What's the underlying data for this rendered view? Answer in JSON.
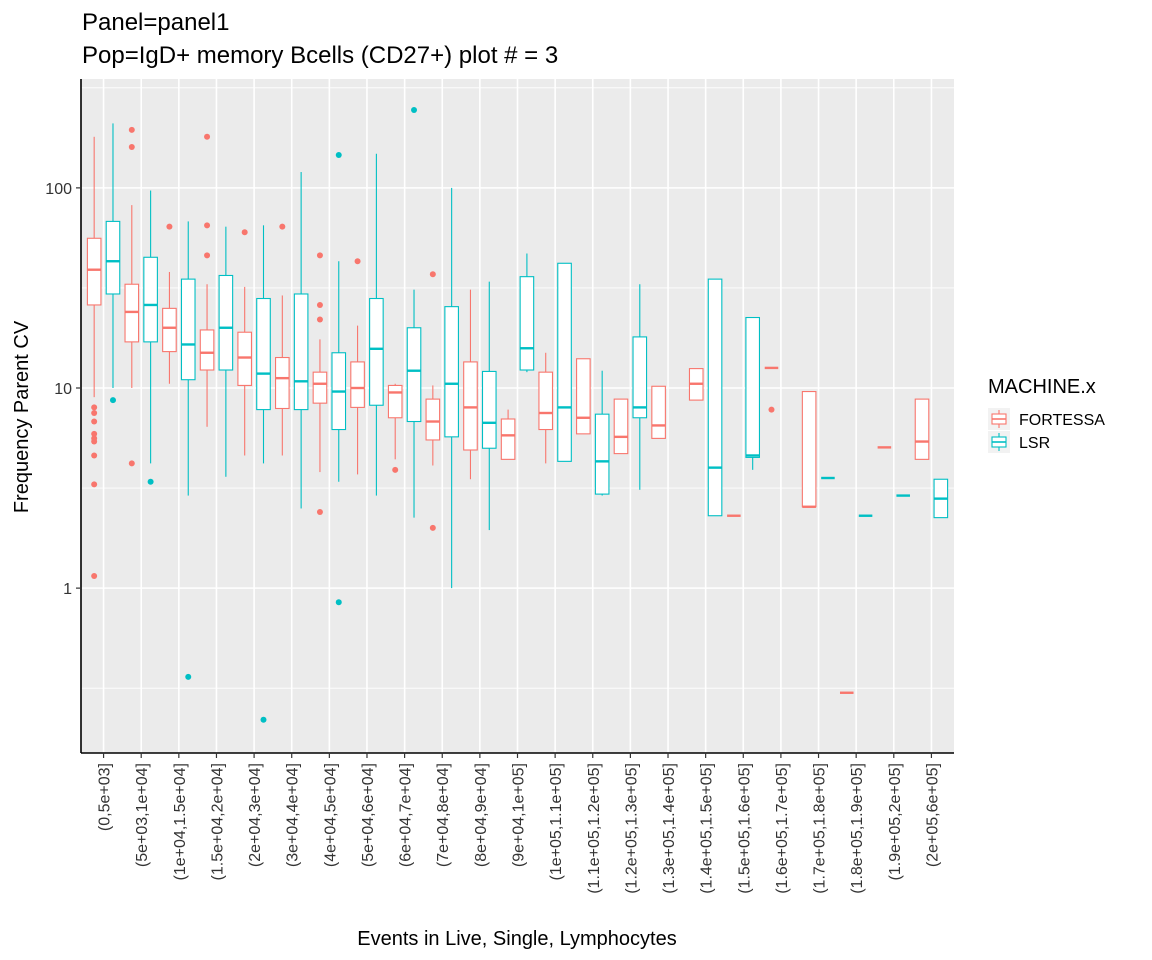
{
  "chart_data": {
    "type": "boxplot",
    "title": "Panel=panel1",
    "subtitle": "Pop=IgD+ memory Bcells (CD27+) plot # = 3",
    "xlabel": "Events in Live, Single, Lymphocytes",
    "ylabel": "Frequency Parent CV",
    "y_scale": "log10",
    "ylim": [
      0.15,
      350
    ],
    "y_ticks": [
      1,
      10,
      100
    ],
    "y_tick_labels": [
      "1",
      "10",
      "100"
    ],
    "grid": true,
    "legend_position": "right",
    "legend_title": "MACHINE.x",
    "series": [
      {
        "name": "FORTESSA",
        "color": "#F8766D"
      },
      {
        "name": "LSR",
        "color": "#00BFC4"
      }
    ],
    "categories": [
      "(0,5e+03]",
      "(5e+03,1e+04]",
      "(1e+04,1.5e+04]",
      "(1.5e+04,2e+04]",
      "(2e+04,3e+04]",
      "(3e+04,4e+04]",
      "(4e+04,5e+04]",
      "(5e+04,6e+04]",
      "(6e+04,7e+04]",
      "(7e+04,8e+04]",
      "(8e+04,9e+04]",
      "(9e+04,1e+05]",
      "(1e+05,1.1e+05]",
      "(1.1e+05,1.2e+05]",
      "(1.2e+05,1.3e+05]",
      "(1.3e+05,1.4e+05]",
      "(1.4e+05,1.5e+05]",
      "(1.5e+05,1.6e+05]",
      "(1.6e+05,1.7e+05]",
      "(1.7e+05,1.8e+05]",
      "(1.8e+05,1.9e+05]",
      "(1.9e+05,2e+05]",
      "(2e+05,6e+05]"
    ],
    "boxes": [
      {
        "category": 0,
        "series": "FORTESSA",
        "whisker_low": 9,
        "q1": 26,
        "median": 39,
        "q3": 56,
        "whisker_high": 180,
        "outliers": [
          8,
          7.5,
          6.8,
          5.9,
          5.6,
          5.4,
          4.6,
          3.3,
          1.15
        ]
      },
      {
        "category": 0,
        "series": "LSR",
        "whisker_low": 10,
        "q1": 29.5,
        "median": 43,
        "q3": 68,
        "whisker_high": 210,
        "outliers": [
          8.7
        ]
      },
      {
        "category": 1,
        "series": "FORTESSA",
        "whisker_low": 10,
        "q1": 17,
        "median": 24,
        "q3": 33,
        "whisker_high": 82,
        "outliers": [
          195,
          160,
          4.2
        ]
      },
      {
        "category": 1,
        "series": "LSR",
        "whisker_low": 4.2,
        "q1": 17,
        "median": 26,
        "q3": 45,
        "whisker_high": 97,
        "outliers": [
          3.4
        ]
      },
      {
        "category": 2,
        "series": "FORTESSA",
        "whisker_low": 10.5,
        "q1": 15.2,
        "median": 20,
        "q3": 25,
        "whisker_high": 38,
        "outliers": [
          64
        ]
      },
      {
        "category": 2,
        "series": "LSR",
        "whisker_low": 2.9,
        "q1": 11,
        "median": 16.5,
        "q3": 35,
        "whisker_high": 68,
        "outliers": [
          0.36
        ]
      },
      {
        "category": 3,
        "series": "FORTESSA",
        "whisker_low": 6.4,
        "q1": 12.3,
        "median": 15,
        "q3": 19.5,
        "whisker_high": 33,
        "outliers": [
          180,
          65,
          46
        ]
      },
      {
        "category": 3,
        "series": "LSR",
        "whisker_low": 3.6,
        "q1": 12.3,
        "median": 20,
        "q3": 36.5,
        "whisker_high": 64,
        "outliers": []
      },
      {
        "category": 4,
        "series": "FORTESSA",
        "whisker_low": 4.6,
        "q1": 10.3,
        "median": 14.2,
        "q3": 19,
        "whisker_high": 32,
        "outliers": [
          60
        ]
      },
      {
        "category": 4,
        "series": "LSR",
        "whisker_low": 4.2,
        "q1": 7.8,
        "median": 11.8,
        "q3": 28,
        "whisker_high": 65,
        "outliers": [
          0.22
        ]
      },
      {
        "category": 5,
        "series": "FORTESSA",
        "whisker_low": 4.6,
        "q1": 7.9,
        "median": 11.2,
        "q3": 14.2,
        "whisker_high": 29,
        "outliers": [
          64
        ]
      },
      {
        "category": 5,
        "series": "LSR",
        "whisker_low": 2.5,
        "q1": 7.8,
        "median": 10.8,
        "q3": 29.5,
        "whisker_high": 120,
        "outliers": []
      },
      {
        "category": 6,
        "series": "FORTESSA",
        "whisker_low": 3.8,
        "q1": 8.4,
        "median": 10.5,
        "q3": 12,
        "whisker_high": 17.5,
        "outliers": [
          46,
          26,
          22,
          2.4
        ]
      },
      {
        "category": 6,
        "series": "LSR",
        "whisker_low": 3.4,
        "q1": 6.2,
        "median": 9.6,
        "q3": 15,
        "whisker_high": 43,
        "outliers": [
          146,
          0.85
        ]
      },
      {
        "category": 7,
        "series": "FORTESSA",
        "whisker_low": 3.7,
        "q1": 8,
        "median": 10,
        "q3": 13.5,
        "whisker_high": 20.5,
        "outliers": [
          43
        ]
      },
      {
        "category": 7,
        "series": "LSR",
        "whisker_low": 2.9,
        "q1": 8.2,
        "median": 15.7,
        "q3": 28,
        "whisker_high": 148,
        "outliers": []
      },
      {
        "category": 8,
        "series": "FORTESSA",
        "whisker_low": 4.4,
        "q1": 7.1,
        "median": 9.5,
        "q3": 10.3,
        "whisker_high": 10.5,
        "outliers": [
          3.9
        ]
      },
      {
        "category": 8,
        "series": "LSR",
        "whisker_low": 2.25,
        "q1": 6.8,
        "median": 12.2,
        "q3": 20,
        "whisker_high": 31,
        "outliers": [
          245
        ]
      },
      {
        "category": 9,
        "series": "FORTESSA",
        "whisker_low": 4.1,
        "q1": 5.5,
        "median": 6.8,
        "q3": 8.8,
        "whisker_high": 10.3,
        "outliers": [
          37,
          2
        ]
      },
      {
        "category": 9,
        "series": "LSR",
        "whisker_low": 1,
        "q1": 5.7,
        "median": 10.5,
        "q3": 25.5,
        "whisker_high": 100,
        "outliers": []
      },
      {
        "category": 10,
        "series": "FORTESSA",
        "whisker_low": 3.5,
        "q1": 4.9,
        "median": 8,
        "q3": 13.5,
        "whisker_high": 31,
        "outliers": []
      },
      {
        "category": 10,
        "series": "LSR",
        "whisker_low": 1.95,
        "q1": 5,
        "median": 6.7,
        "q3": 12.1,
        "whisker_high": 34,
        "outliers": []
      },
      {
        "category": 11,
        "series": "FORTESSA",
        "whisker_low": 4.4,
        "q1": 4.4,
        "median": 5.8,
        "q3": 7,
        "whisker_high": 7.8,
        "outliers": []
      },
      {
        "category": 11,
        "series": "LSR",
        "whisker_low": 12,
        "q1": 12.3,
        "median": 15.8,
        "q3": 36,
        "whisker_high": 47,
        "outliers": []
      },
      {
        "category": 12,
        "series": "FORTESSA",
        "whisker_low": 4.2,
        "q1": 6.2,
        "median": 7.5,
        "q3": 12,
        "whisker_high": 15,
        "outliers": []
      },
      {
        "category": 12,
        "series": "LSR",
        "whisker_low": 4.3,
        "q1": 4.3,
        "median": 8,
        "q3": 42,
        "whisker_high": 42,
        "outliers": []
      },
      {
        "category": 13,
        "series": "FORTESSA",
        "whisker_low": 5.9,
        "q1": 5.9,
        "median": 7.1,
        "q3": 14,
        "whisker_high": 14,
        "outliers": []
      },
      {
        "category": 13,
        "series": "LSR",
        "whisker_low": 2.9,
        "q1": 2.95,
        "median": 4.3,
        "q3": 7.4,
        "whisker_high": 12.2,
        "outliers": []
      },
      {
        "category": 14,
        "series": "FORTESSA",
        "whisker_low": 4.7,
        "q1": 4.7,
        "median": 5.7,
        "q3": 8.8,
        "whisker_high": 8.8,
        "outliers": []
      },
      {
        "category": 14,
        "series": "LSR",
        "whisker_low": 3.1,
        "q1": 7.1,
        "median": 8,
        "q3": 18,
        "whisker_high": 33,
        "outliers": []
      },
      {
        "category": 15,
        "series": "FORTESSA",
        "whisker_low": 5.6,
        "q1": 5.6,
        "median": 6.5,
        "q3": 10.2,
        "whisker_high": 10.2,
        "outliers": []
      },
      {
        "category": 16,
        "series": "FORTESSA",
        "whisker_low": 8.7,
        "q1": 8.7,
        "median": 10.5,
        "q3": 12.5,
        "whisker_high": 12.5,
        "outliers": []
      },
      {
        "category": 16,
        "series": "LSR",
        "whisker_low": 2.3,
        "q1": 2.3,
        "median": 4,
        "q3": 35,
        "whisker_high": 35,
        "outliers": []
      },
      {
        "category": 17,
        "series": "FORTESSA",
        "whisker_low": 2.3,
        "q1": 2.3,
        "median": 2.3,
        "q3": 2.3,
        "whisker_high": 2.3,
        "outliers": []
      },
      {
        "category": 17,
        "series": "LSR",
        "whisker_low": 3.9,
        "q1": 4.5,
        "median": 4.6,
        "q3": 22.5,
        "whisker_high": 22.5,
        "outliers": []
      },
      {
        "category": 18,
        "series": "FORTESSA",
        "whisker_low": 12.6,
        "q1": 12.6,
        "median": 12.6,
        "q3": 12.6,
        "whisker_high": 12.6,
        "outliers": [
          7.8
        ]
      },
      {
        "category": 19,
        "series": "FORTESSA",
        "whisker_low": 2.55,
        "q1": 2.55,
        "median": 2.55,
        "q3": 9.6,
        "whisker_high": 9.6,
        "outliers": []
      },
      {
        "category": 19,
        "series": "LSR",
        "whisker_low": 3.55,
        "q1": 3.55,
        "median": 3.55,
        "q3": 3.55,
        "whisker_high": 3.55,
        "outliers": []
      },
      {
        "category": 20,
        "series": "FORTESSA",
        "whisker_low": 0.3,
        "q1": 0.3,
        "median": 0.3,
        "q3": 0.3,
        "whisker_high": 0.3,
        "outliers": []
      },
      {
        "category": 20,
        "series": "LSR",
        "whisker_low": 2.3,
        "q1": 2.3,
        "median": 2.3,
        "q3": 2.3,
        "whisker_high": 2.3,
        "outliers": []
      },
      {
        "category": 21,
        "series": "FORTESSA",
        "whisker_low": 5.05,
        "q1": 5.05,
        "median": 5.05,
        "q3": 5.05,
        "whisker_high": 5.05,
        "outliers": []
      },
      {
        "category": 21,
        "series": "LSR",
        "whisker_low": 2.9,
        "q1": 2.9,
        "median": 2.9,
        "q3": 2.9,
        "whisker_high": 2.9,
        "outliers": []
      },
      {
        "category": 22,
        "series": "FORTESSA",
        "whisker_low": 4.4,
        "q1": 4.4,
        "median": 5.4,
        "q3": 8.8,
        "whisker_high": 8.8,
        "outliers": []
      },
      {
        "category": 22,
        "series": "LSR",
        "whisker_low": 2.25,
        "q1": 2.25,
        "median": 2.8,
        "q3": 3.5,
        "whisker_high": 3.5,
        "outliers": []
      }
    ]
  }
}
